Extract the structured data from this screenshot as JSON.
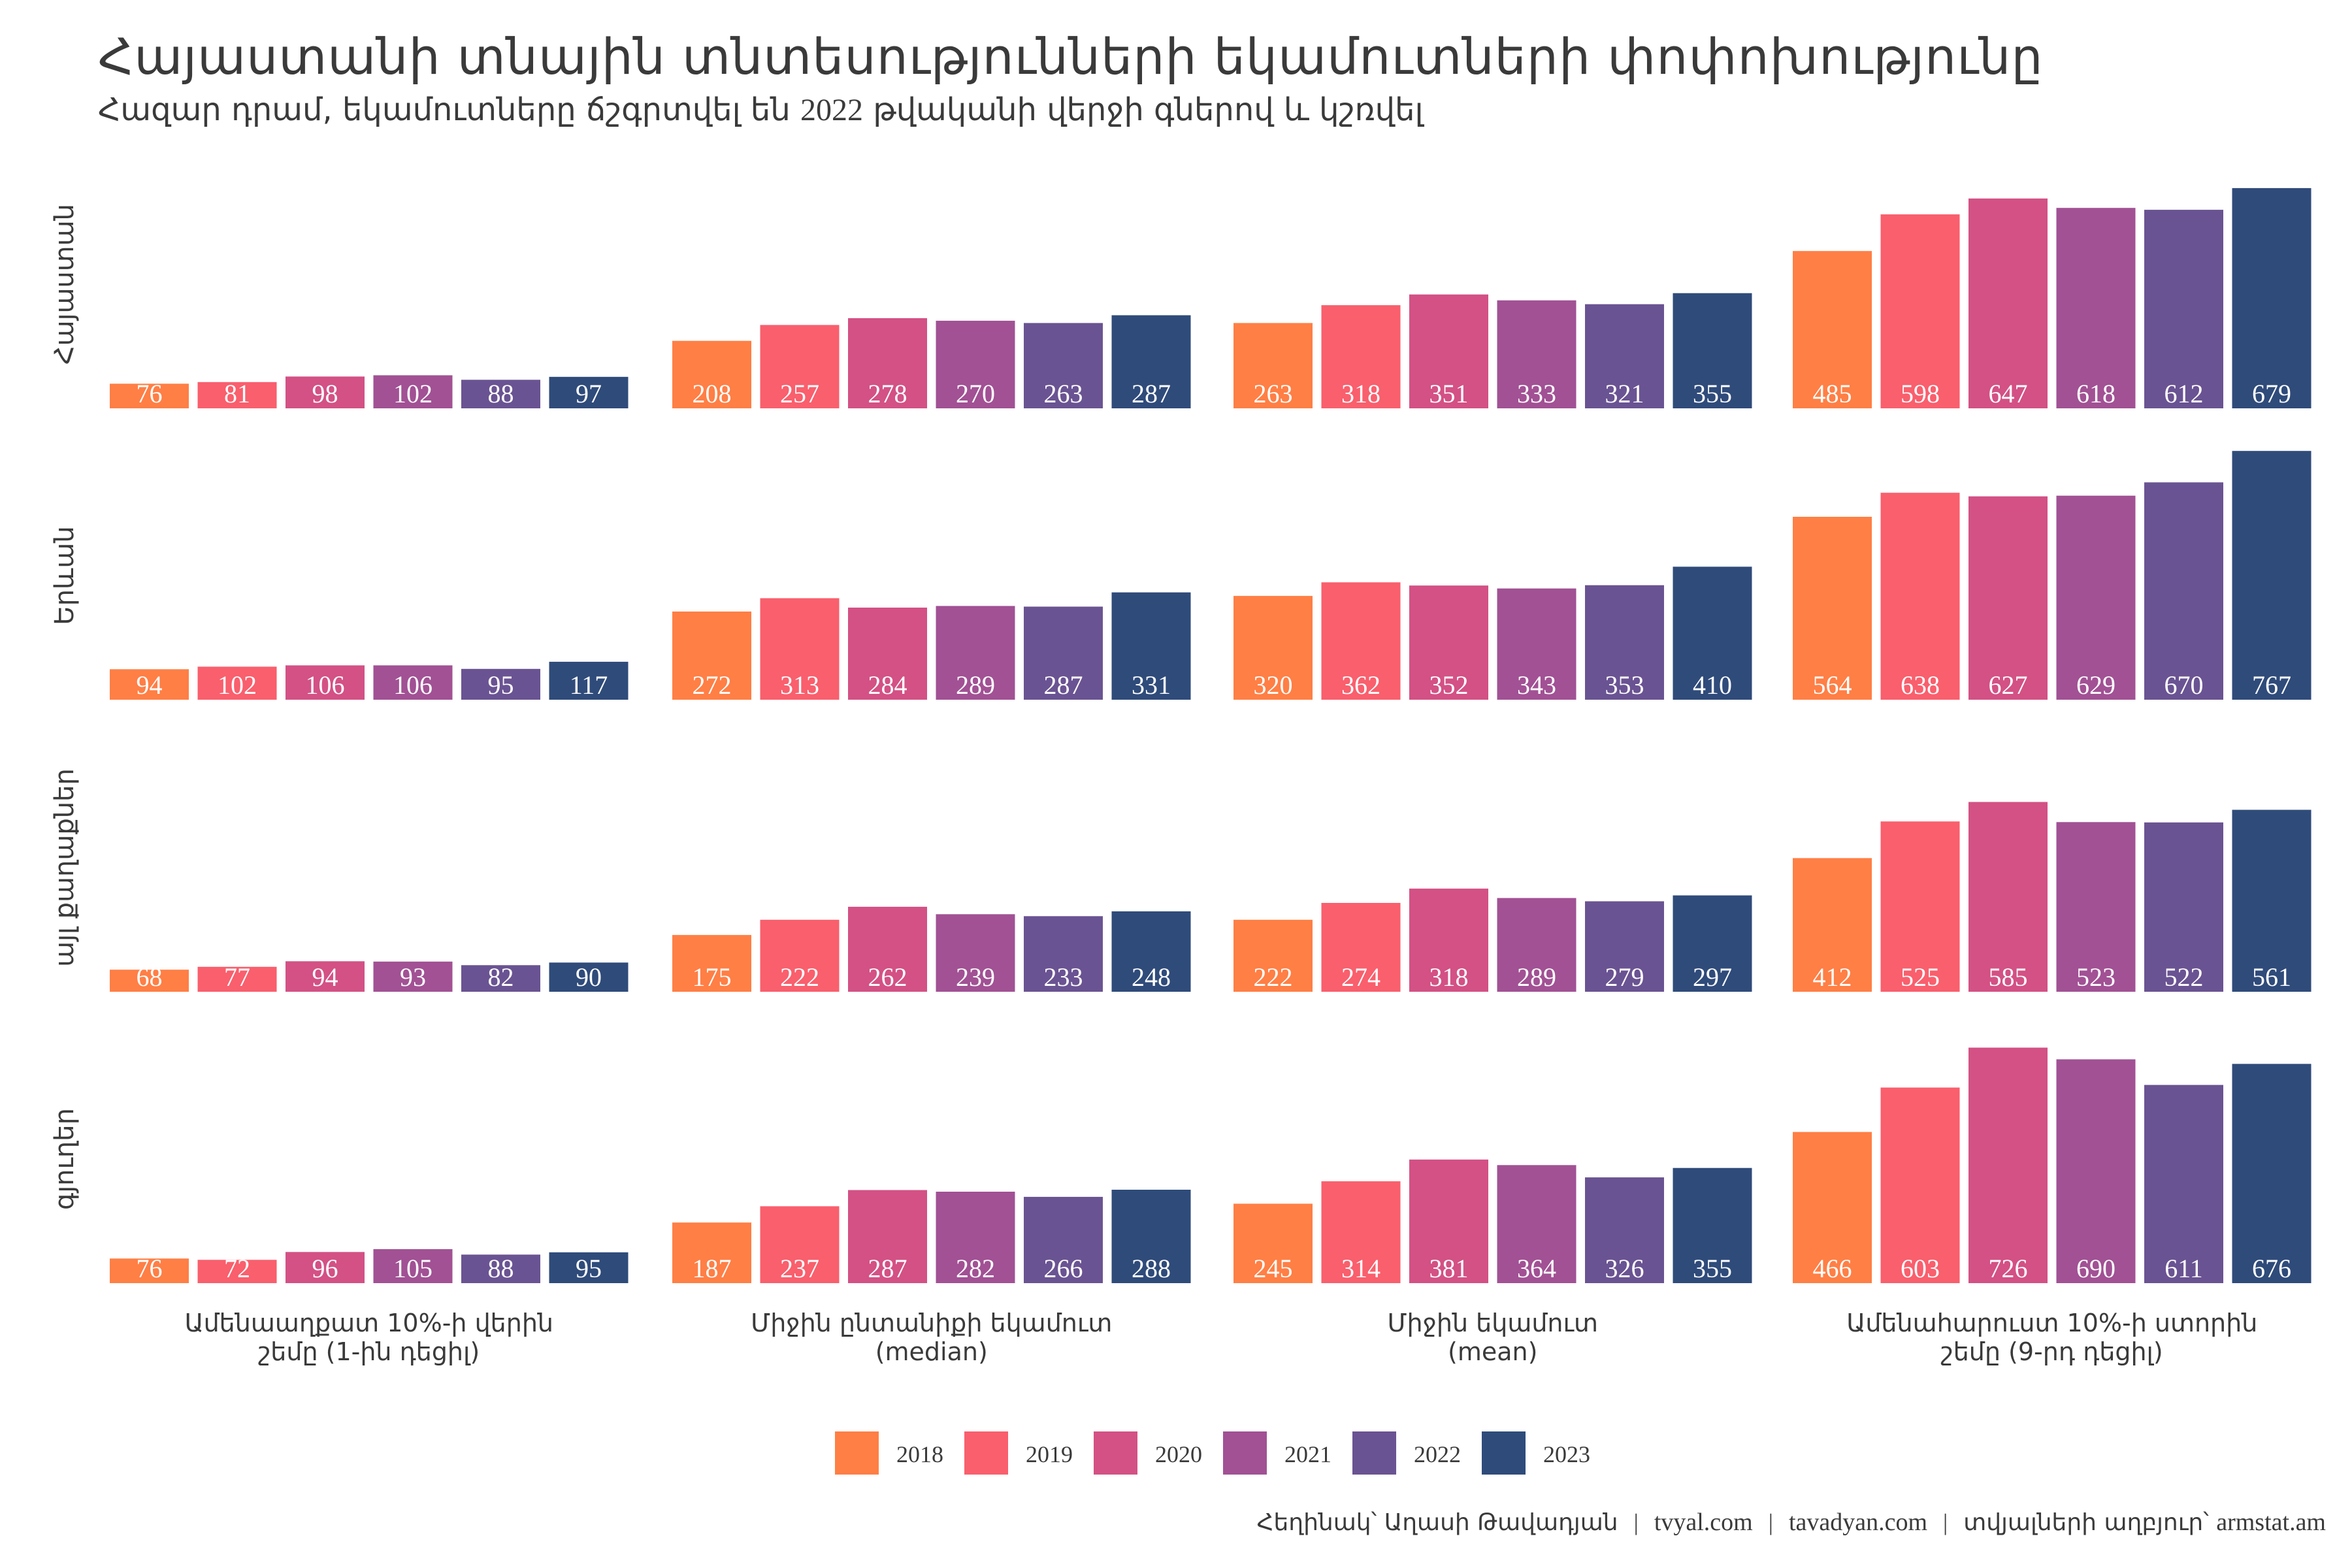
{
  "title": "Հայաստանի տնային տնտեսությունների եկամուտների փոփոխությունը",
  "subtitle": {
    "before": "Հազար դրամ, եկամուտները ճշգրտվել են ",
    "year": "2022",
    "after": " թվականի վերջի գներով և կշռվել"
  },
  "caption": {
    "author": "Հեղինակ՝ Աղասի Թավադյան",
    "site1": "tvyal.com",
    "site2": "tavadyan.com",
    "source_label": "տվյալների աղբյուր՝ ",
    "source": "armstat.am",
    "separator": "|"
  },
  "chart_data": {
    "type": "bar",
    "title": "Հայաստանի տնային տնտեսությունների եկամուտների փոփոխությունը",
    "subtitle": "Հազար դրամ, եկամուտները ճշգրտվել են 2022 թվականի վերջի գներով և կշռվել",
    "xlabel": "",
    "ylabel": "",
    "grid": false,
    "legend_position": "bottom",
    "years": [
      "2018",
      "2019",
      "2020",
      "2021",
      "2022",
      "2023"
    ],
    "colors": [
      "#FF7F45",
      "#F95F6D",
      "#D35185",
      "#A15194",
      "#6A5392",
      "#2F4B7A"
    ],
    "rows": [
      "Հայաստան",
      "Երևան",
      "այլ քաղաքներ",
      "գյուղեր"
    ],
    "categories": [
      {
        "line1": "Ամենաաղքատ 10%-ի վերին",
        "line2": "շեմը (1-ին դեցիլ)"
      },
      {
        "line1": "Միջին ընտանիքի եկամուտ",
        "line2": "(median)"
      },
      {
        "line1": "Միջին եկամուտ",
        "line2": "(mean)"
      },
      {
        "line1": "Ամենահարուստ 10%-ի ստորին",
        "line2": "շեմը (9-րդ դեցիլ)"
      }
    ],
    "values": [
      [
        [
          76,
          81,
          98,
          102,
          88,
          97
        ],
        [
          208,
          257,
          278,
          270,
          263,
          287
        ],
        [
          263,
          318,
          351,
          333,
          321,
          355
        ],
        [
          485,
          598,
          647,
          618,
          612,
          679
        ]
      ],
      [
        [
          94,
          102,
          106,
          106,
          95,
          117
        ],
        [
          272,
          313,
          284,
          289,
          287,
          331
        ],
        [
          320,
          362,
          352,
          343,
          353,
          410
        ],
        [
          564,
          638,
          627,
          629,
          670,
          767
        ]
      ],
      [
        [
          68,
          77,
          94,
          93,
          82,
          90
        ],
        [
          175,
          222,
          262,
          239,
          233,
          248
        ],
        [
          222,
          274,
          318,
          289,
          279,
          297
        ],
        [
          412,
          525,
          585,
          523,
          522,
          561
        ]
      ],
      [
        [
          76,
          72,
          96,
          105,
          88,
          95
        ],
        [
          187,
          237,
          287,
          282,
          266,
          288
        ],
        [
          245,
          314,
          381,
          364,
          326,
          355
        ],
        [
          466,
          603,
          726,
          690,
          611,
          676
        ]
      ]
    ],
    "ylim": [
      0,
      767
    ]
  }
}
